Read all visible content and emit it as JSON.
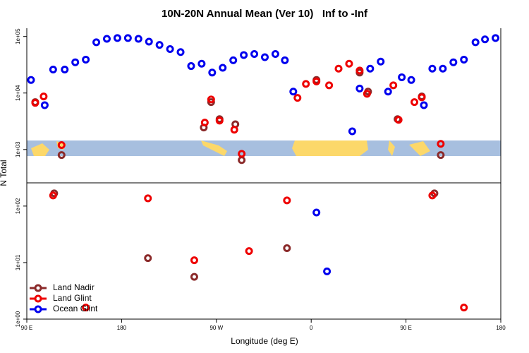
{
  "chart_data": {
    "type": "scatter",
    "title": "10N-20N Annual Mean (Ver 10)   Inf to -Inf",
    "x_label": "Longitude (deg E)",
    "y_label": "N Total",
    "log_y": true,
    "legend": "lower left",
    "xlim": [
      -270,
      180
    ],
    "xticks": [
      {
        "value": -270,
        "label": "90 E"
      },
      {
        "value": -180,
        "label": "180"
      },
      {
        "value": -90,
        "label": "90 W"
      },
      0,
      {
        "value": 90,
        "label": "90 E"
      },
      180
    ],
    "ylim": [
      1,
      140000
    ],
    "yticks": [
      {
        "value": 1,
        "label": "1e+00"
      },
      {
        "value": 10,
        "label": "1e+01"
      },
      {
        "value": 100,
        "label": "1e+02"
      },
      {
        "value": 1000,
        "label": "1e+03"
      },
      {
        "value": 10000,
        "label": "1e+04"
      },
      {
        "value": 100000,
        "label": "1e+05"
      }
    ],
    "series": [
      {
        "name": "Land Nadir",
        "color": "#8b2a2a",
        "x": [
          -262,
          -237,
          -244,
          -155,
          -111,
          -102,
          -95,
          -87,
          -72,
          -66,
          -23,
          5,
          46,
          54,
          82,
          105,
          117,
          123
        ],
        "values": [
          6900,
          800,
          168,
          12,
          5.6,
          2450,
          6900,
          3450,
          2800,
          650,
          18,
          17000,
          23000,
          10600,
          3450,
          8700,
          168,
          800
        ]
      },
      {
        "name": "Land Glint",
        "color": "#ee0000",
        "x": [
          -262,
          -254,
          -237,
          -245,
          -155,
          -214,
          -101,
          -95,
          -87,
          -73,
          -66,
          -59,
          -111,
          -23,
          -13,
          -5,
          5,
          17,
          26,
          36,
          46,
          53,
          78,
          83,
          98,
          105,
          115,
          123,
          145
        ],
        "values": [
          6700,
          8700,
          1200,
          154,
          137,
          1.6,
          3000,
          7700,
          3250,
          2240,
          840,
          16,
          11,
          126,
          8200,
          14500,
          16000,
          13700,
          27000,
          33000,
          25000,
          9700,
          13700,
          3350,
          6900,
          8400,
          154,
          1260,
          1.6
        ]
      },
      {
        "name": "Ocean Glint",
        "color": "#0000ee",
        "x": [
          -266,
          -253,
          -245,
          -234,
          -224,
          -214,
          -204,
          -194,
          -184,
          -174,
          -164,
          -154,
          -144,
          -134,
          -124,
          -114,
          -104,
          -94,
          -84,
          -74,
          -64,
          -54,
          -44,
          -34,
          -25,
          -17,
          39,
          5,
          15,
          46,
          56,
          66,
          73,
          86,
          95,
          107,
          115,
          125,
          135,
          145,
          156,
          165,
          175
        ],
        "values": [
          17000,
          6100,
          26000,
          26000,
          35000,
          39000,
          79000,
          91000,
          94000,
          94000,
          91000,
          81000,
          71000,
          60000,
          53000,
          30000,
          33000,
          23000,
          28000,
          38000,
          47000,
          49000,
          43000,
          49000,
          38000,
          10600,
          2100,
          77,
          7,
          12000,
          27000,
          36000,
          10600,
          19000,
          17000,
          6100,
          27000,
          27000,
          35000,
          39000,
          79000,
          89000,
          94000
        ]
      }
    ]
  }
}
